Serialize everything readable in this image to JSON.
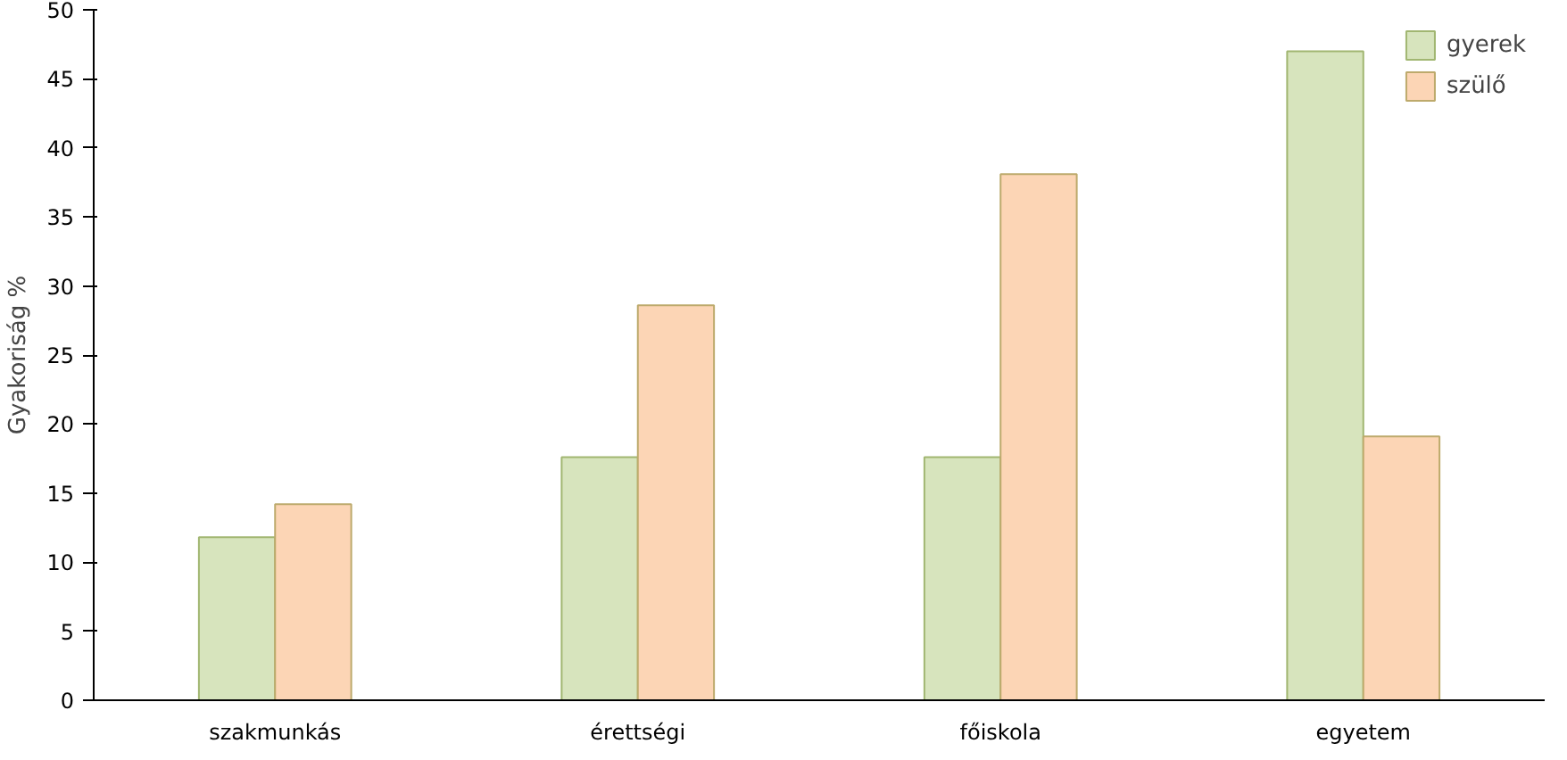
{
  "chart_data": {
    "type": "bar",
    "ylabel": "Gyakoriság %",
    "categories": [
      "szakmunkás",
      "érettségi",
      "főiskola",
      "egyetem"
    ],
    "series": [
      {
        "name": "gyerek",
        "color": "#d7e4bd",
        "values": [
          11.8,
          17.6,
          17.6,
          47.0
        ]
      },
      {
        "name": "szülő",
        "color": "#fcd5b5",
        "values": [
          14.2,
          28.6,
          38.1,
          19.1
        ]
      }
    ],
    "ylim": [
      0,
      50
    ],
    "yticks": [
      0,
      5,
      10,
      15,
      20,
      25,
      30,
      35,
      40,
      45,
      50
    ],
    "grid": false,
    "legend": "top right"
  }
}
